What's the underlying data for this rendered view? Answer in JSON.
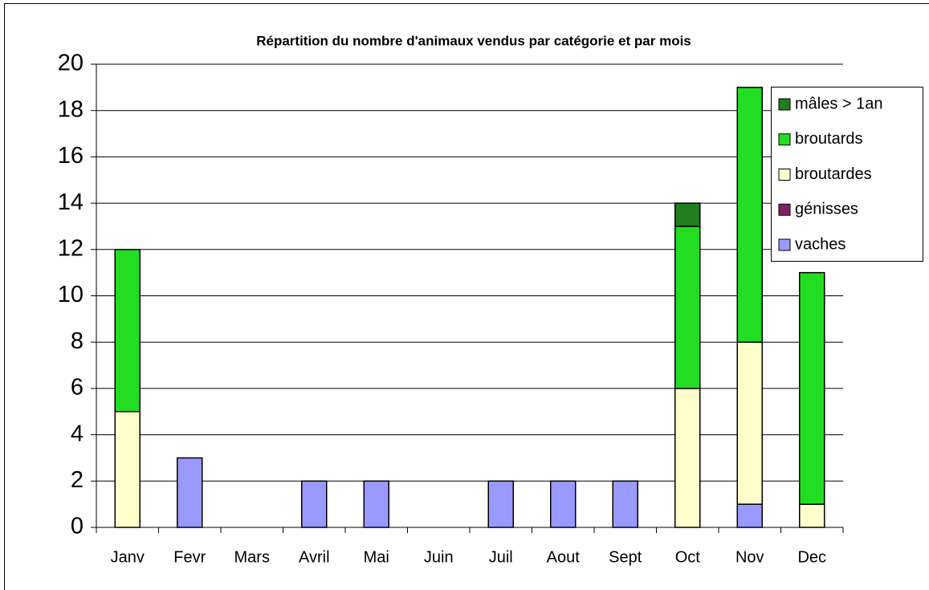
{
  "chart_data": {
    "type": "stacked_bar",
    "title": "Répartition du nombre d'animaux vendus par catégorie et par mois",
    "categories": [
      "Janv",
      "Fevr",
      "Mars",
      "Avril",
      "Mai",
      "Juin",
      "Juil",
      "Aout",
      "Sept",
      "Oct",
      "Nov",
      "Dec"
    ],
    "series": [
      {
        "name": "vaches",
        "color": "#9999ff",
        "values": [
          0,
          3,
          0,
          2,
          2,
          0,
          2,
          2,
          2,
          0,
          1,
          0
        ]
      },
      {
        "name": "génisses",
        "color": "#7f2060",
        "values": [
          0,
          0,
          0,
          0,
          0,
          0,
          0,
          0,
          0,
          0,
          0,
          0
        ]
      },
      {
        "name": "broutardes",
        "color": "#ffffcc",
        "values": [
          5,
          0,
          0,
          0,
          0,
          0,
          0,
          0,
          0,
          6,
          7,
          1
        ]
      },
      {
        "name": "broutards",
        "color": "#22dd22",
        "values": [
          7,
          0,
          0,
          0,
          0,
          0,
          0,
          0,
          0,
          7,
          11,
          10
        ]
      },
      {
        "name": "mâles > 1an",
        "color": "#1f7f1f",
        "values": [
          0,
          0,
          0,
          0,
          0,
          0,
          0,
          0,
          0,
          1,
          0,
          0
        ]
      }
    ],
    "ylim": [
      0,
      20
    ],
    "yticks": [
      0,
      2,
      4,
      6,
      8,
      10,
      12,
      14,
      16,
      18,
      20
    ],
    "grid": true,
    "legend": "right"
  }
}
